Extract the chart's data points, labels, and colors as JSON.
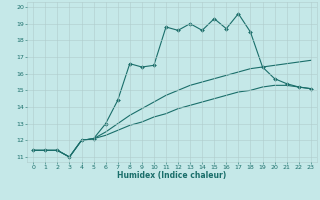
{
  "xlabel": "Humidex (Indice chaleur)",
  "bg_color": "#c5e8e8",
  "grid_color": "#b0cccc",
  "line_color": "#1a6e6a",
  "xlim": [
    -0.5,
    23.5
  ],
  "ylim": [
    10.7,
    20.3
  ],
  "xticks": [
    0,
    1,
    2,
    3,
    4,
    5,
    6,
    7,
    8,
    9,
    10,
    11,
    12,
    13,
    14,
    15,
    16,
    17,
    18,
    19,
    20,
    21,
    22,
    23
  ],
  "yticks": [
    11,
    12,
    13,
    14,
    15,
    16,
    17,
    18,
    19,
    20
  ],
  "line1_x": [
    0,
    1,
    2,
    3,
    4,
    5,
    6,
    7,
    8,
    9,
    10,
    11,
    12,
    13,
    14,
    15,
    16,
    17,
    18,
    19,
    20,
    21,
    22,
    23
  ],
  "line1_y": [
    11.4,
    11.4,
    11.4,
    11.0,
    12.0,
    12.1,
    13.0,
    14.4,
    16.6,
    16.4,
    16.5,
    18.8,
    18.6,
    19.0,
    18.6,
    19.3,
    18.7,
    19.6,
    18.5,
    16.4,
    15.7,
    15.4,
    15.2,
    15.1
  ],
  "line2_x": [
    0,
    1,
    2,
    3,
    4,
    5,
    6,
    7,
    8,
    9,
    10,
    11,
    12,
    13,
    14,
    15,
    16,
    17,
    18,
    19,
    20,
    21,
    22,
    23
  ],
  "line2_y": [
    11.4,
    11.4,
    11.4,
    11.0,
    12.0,
    12.1,
    12.5,
    13.0,
    13.5,
    13.9,
    14.3,
    14.7,
    15.0,
    15.3,
    15.5,
    15.7,
    15.9,
    16.1,
    16.3,
    16.4,
    16.5,
    16.6,
    16.7,
    16.8
  ],
  "line3_x": [
    0,
    1,
    2,
    3,
    4,
    5,
    6,
    7,
    8,
    9,
    10,
    11,
    12,
    13,
    14,
    15,
    16,
    17,
    18,
    19,
    20,
    21,
    22,
    23
  ],
  "line3_y": [
    11.4,
    11.4,
    11.4,
    11.0,
    12.0,
    12.1,
    12.3,
    12.6,
    12.9,
    13.1,
    13.4,
    13.6,
    13.9,
    14.1,
    14.3,
    14.5,
    14.7,
    14.9,
    15.0,
    15.2,
    15.3,
    15.3,
    15.2,
    15.1
  ],
  "tick_fontsize": 4.5,
  "xlabel_fontsize": 5.5,
  "lw": 0.8,
  "marker_size": 2.0
}
